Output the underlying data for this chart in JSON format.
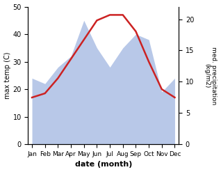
{
  "months": [
    "Jan",
    "Feb",
    "Mar",
    "Apr",
    "May",
    "Jun",
    "Jul",
    "Aug",
    "Sep",
    "Oct",
    "Nov",
    "Dec"
  ],
  "month_positions": [
    0,
    1,
    2,
    3,
    4,
    5,
    6,
    7,
    8,
    9,
    10,
    11
  ],
  "temperature": [
    17,
    18.5,
    24,
    31,
    38,
    45,
    47,
    47,
    41,
    30,
    20,
    17
  ],
  "precip_left_scale": [
    24,
    22,
    28,
    32,
    45,
    35,
    28,
    35,
    40,
    38,
    19,
    24
  ],
  "temp_color": "#cc2222",
  "precip_color": "#b8c8e8",
  "left_ylim": [
    0,
    50
  ],
  "right_ylim": [
    0,
    22
  ],
  "left_yticks": [
    0,
    10,
    20,
    30,
    40,
    50
  ],
  "right_yticks": [
    0,
    5,
    10,
    15,
    20
  ],
  "xlabel": "date (month)",
  "ylabel_left": "max temp (C)",
  "ylabel_right": "med. precipitation\n(kg/m2)",
  "bg_color": "#ffffff"
}
